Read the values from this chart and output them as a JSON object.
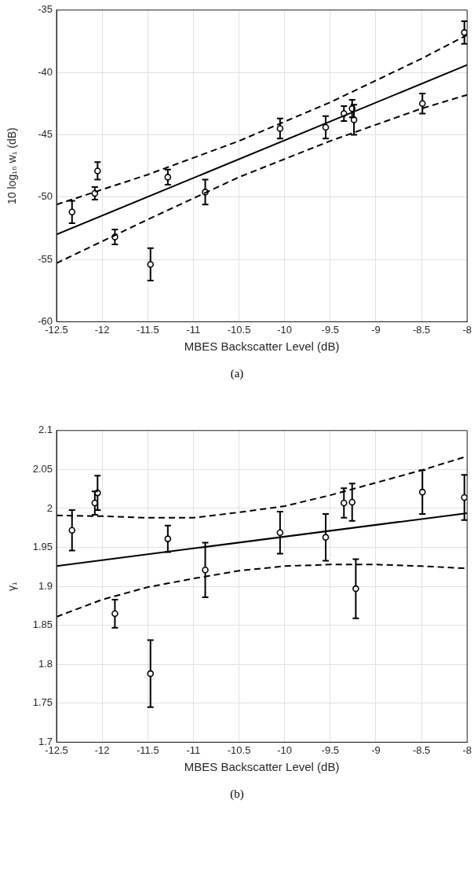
{
  "chart_data": [
    {
      "type": "scatter",
      "xlabel": "MBES Backscatter Level (dB)",
      "ylabel": "10 log₁₀ w₁ (dB)",
      "annotations": [
        "(a)"
      ],
      "xlim": [
        -12.5,
        -8
      ],
      "xticks": [
        -12.5,
        -12,
        -11.5,
        -11,
        -10.5,
        -10,
        -9.5,
        -9,
        -8.5,
        -8
      ],
      "ylim": [
        -60,
        -35
      ],
      "yticks": [
        -60,
        -55,
        -50,
        -45,
        -40,
        -35
      ],
      "grid": true,
      "series": [
        {
          "type": "scatter",
          "color": "#000000",
          "marker": "circle",
          "x": [
            -12.33,
            -12.08,
            -12.05,
            -11.86,
            -11.47,
            -11.28,
            -10.87,
            -10.05,
            -9.55,
            -9.35,
            -9.26,
            -9.24,
            -8.49,
            -8.03
          ],
          "values": [
            -51.2,
            -49.7,
            -47.9,
            -53.2,
            -55.4,
            -48.4,
            -49.6,
            -44.5,
            -44.4,
            -43.3,
            -42.9,
            -43.8,
            -42.5,
            -36.8
          ],
          "errors": [
            0.9,
            0.5,
            0.7,
            0.6,
            1.3,
            0.6,
            1.0,
            0.8,
            0.9,
            0.6,
            0.7,
            1.2,
            0.8,
            0.9
          ]
        },
        {
          "type": "line",
          "color": "#000000",
          "line_style": "solid",
          "marker": "none",
          "x": [
            -12.5,
            -8
          ],
          "values": [
            -53.0,
            -39.4
          ]
        },
        {
          "type": "line",
          "color": "#000000",
          "line_style": "dashed",
          "marker": "none",
          "x": [
            -12.5,
            -11.5,
            -10.5,
            -9.5,
            -8.5,
            -8
          ],
          "values": [
            -50.6,
            -48.2,
            -45.5,
            -42.4,
            -38.9,
            -37.0
          ]
        },
        {
          "type": "line",
          "color": "#000000",
          "line_style": "dashed",
          "marker": "none",
          "x": [
            -12.5,
            -11.5,
            -10.5,
            -9.5,
            -8.5,
            -8
          ],
          "values": [
            -55.3,
            -51.8,
            -48.4,
            -45.5,
            -42.9,
            -41.8
          ]
        }
      ]
    },
    {
      "type": "scatter",
      "xlabel": "MBES Backscatter Level (dB)",
      "ylabel": "γ₁",
      "annotations": [
        "(b)"
      ],
      "xlim": [
        -12.5,
        -8
      ],
      "xticks": [
        -12.5,
        -12,
        -11.5,
        -11,
        -10.5,
        -10,
        -9.5,
        -9,
        -8.5,
        -8
      ],
      "ylim": [
        1.7,
        2.1
      ],
      "yticks": [
        1.7,
        1.75,
        1.8,
        1.85,
        1.9,
        1.95,
        2,
        2.05,
        2.1
      ],
      "grid": true,
      "series": [
        {
          "type": "scatter",
          "color": "#000000",
          "marker": "circle",
          "x": [
            -12.33,
            -12.08,
            -12.05,
            -11.86,
            -11.47,
            -11.28,
            -10.87,
            -10.05,
            -9.55,
            -9.35,
            -9.26,
            -9.22,
            -8.49,
            -8.03
          ],
          "values": [
            1.972,
            2.007,
            2.02,
            1.865,
            1.788,
            1.961,
            1.921,
            1.969,
            1.963,
            2.007,
            2.008,
            1.897,
            2.021,
            2.014
          ],
          "errors": [
            0.026,
            0.015,
            0.022,
            0.018,
            0.043,
            0.017,
            0.035,
            0.027,
            0.03,
            0.019,
            0.024,
            0.038,
            0.028,
            0.029
          ]
        },
        {
          "type": "line",
          "color": "#000000",
          "line_style": "solid",
          "marker": "none",
          "x": [
            -12.5,
            -8
          ],
          "values": [
            1.926,
            1.994
          ]
        },
        {
          "type": "line",
          "color": "#000000",
          "line_style": "dashed",
          "marker": "none",
          "x": [
            -12.5,
            -12,
            -11.5,
            -11,
            -10.5,
            -10,
            -9.5,
            -9,
            -8.5,
            -8
          ],
          "values": [
            1.991,
            1.99,
            1.988,
            1.988,
            1.995,
            2.003,
            2.017,
            2.033,
            2.049,
            2.067
          ]
        },
        {
          "type": "line",
          "color": "#000000",
          "line_style": "dashed",
          "marker": "none",
          "x": [
            -12.5,
            -12,
            -11.5,
            -11,
            -10.5,
            -10,
            -9.5,
            -9,
            -8.5,
            -8
          ],
          "values": [
            1.861,
            1.883,
            1.899,
            1.91,
            1.92,
            1.926,
            1.928,
            1.928,
            1.926,
            1.923
          ]
        }
      ]
    }
  ]
}
